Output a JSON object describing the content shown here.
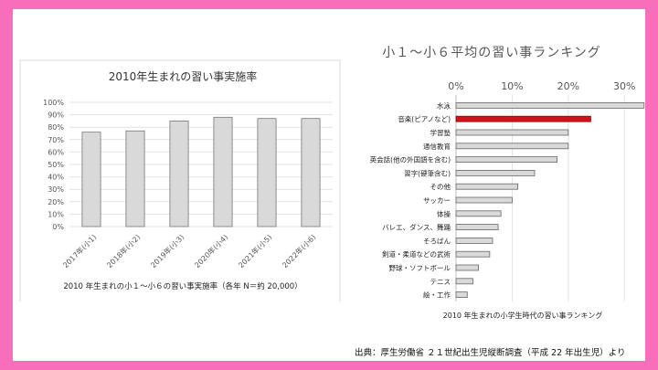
{
  "chart_data": [
    {
      "type": "bar",
      "title": "2010年生まれの習い事実施率",
      "caption": "2010 年生まれの小１〜小６の習い事実施率（各年 N＝約 20,000）",
      "categories": [
        "2017年(小1)",
        "2018年(小2)",
        "2019年(小3)",
        "2020年(小4)",
        "2021年(小5)",
        "2022年(小6)"
      ],
      "values": [
        76,
        77,
        85,
        88,
        87,
        87
      ],
      "yticks": [
        "0%",
        "10%",
        "20%",
        "30%",
        "40%",
        "50%",
        "60%",
        "70%",
        "80%",
        "90%",
        "100%"
      ],
      "ylim": [
        0,
        100
      ],
      "bar_color": "#d9d9d9",
      "grid": true
    },
    {
      "type": "bar",
      "orientation": "horizontal",
      "title": "小１〜小６平均の習い事ランキング",
      "caption": "2010 年生まれの小学生時代の習い事ランキング",
      "categories": [
        "水泳",
        "音楽(ピアノなど)",
        "学習塾",
        "通信教育",
        "英会話(他の外国語を含む)",
        "習字(硬筆含む)",
        "その他",
        "サッカー",
        "体操",
        "バレエ、ダンス、舞踊",
        "そろばん",
        "剣道・柔道などの武術",
        "野球・ソフトボール",
        "テニス",
        "絵・工作"
      ],
      "values": [
        33.5,
        24,
        20,
        20,
        18,
        14,
        11,
        10,
        8,
        7.5,
        6.5,
        6,
        4,
        3,
        2
      ],
      "highlight_index": 1,
      "highlight_color": "#d0131a",
      "bar_color": "#d9d9d9",
      "xticks": [
        "0%",
        "10%",
        "20%",
        "30%"
      ],
      "xlim": [
        0,
        35
      ],
      "grid": true
    }
  ],
  "source": "出典：厚生労働省 ２１世紀出生児縦断調査（平成 22 年出生児）より"
}
